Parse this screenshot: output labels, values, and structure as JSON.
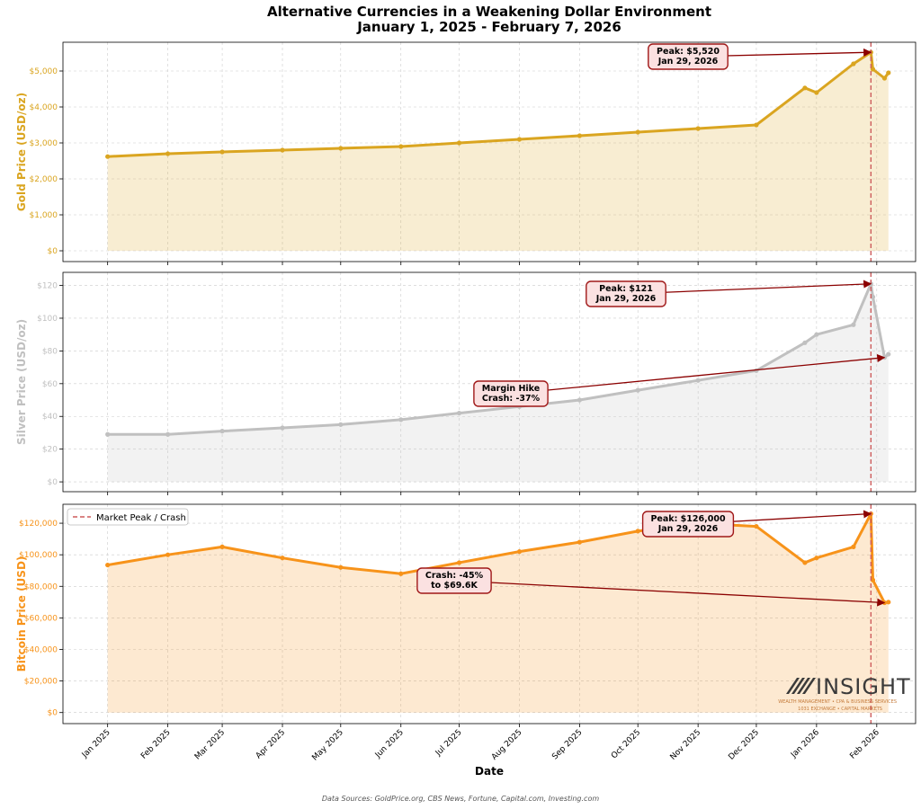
{
  "title_line1": "Alternative Currencies in a Weakening Dollar Environment",
  "title_line2": "January 1, 2025 - February 7, 2026",
  "x_axis_label": "Date",
  "x_ticks": [
    "Jan 2025",
    "Feb 2025",
    "Mar 2025",
    "Apr 2025",
    "May 2025",
    "Jun 2025",
    "Jul 2025",
    "Aug 2025",
    "Sep 2025",
    "Oct 2025",
    "Nov 2025",
    "Dec 2025",
    "Jan 2026",
    "Feb 2026"
  ],
  "source_note": "Data Sources: GoldPrice.org, CBS News, Fortune, Capital.com, Investing.com",
  "legend_label": "Market Peak / Crash",
  "peak_date": "2026-01-29",
  "logo": {
    "name": "INSIGHT",
    "line1": "WEALTH MANAGEMENT • CPA & BUSINESS SERVICES",
    "line2": "1031 EXCHANGE • CAPITAL MARKETS"
  },
  "colors": {
    "gold": "#DAA520",
    "silver": "#C0C0C0",
    "bitcoin": "#F7931A",
    "annotation": "#8B0000",
    "peak_line": "#CD5C5C"
  },
  "chart_data": [
    {
      "type": "area",
      "name": "gold",
      "ylabel": "Gold Price (USD/oz)",
      "ylim": [
        -300,
        5800
      ],
      "yticks": [
        0,
        1000,
        2000,
        3000,
        4000,
        5000
      ],
      "ytick_labels": [
        "$0",
        "$1,000",
        "$2,000",
        "$3,000",
        "$4,000",
        "$5,000"
      ],
      "x": [
        "2025-01-01",
        "2025-02-01",
        "2025-03-01",
        "2025-04-01",
        "2025-05-01",
        "2025-06-01",
        "2025-07-01",
        "2025-08-01",
        "2025-09-01",
        "2025-10-01",
        "2025-11-01",
        "2025-12-01",
        "2025-12-26",
        "2026-01-01",
        "2026-01-20",
        "2026-01-29",
        "2026-01-30",
        "2026-02-05",
        "2026-02-07"
      ],
      "values": [
        2620,
        2700,
        2750,
        2800,
        2850,
        2900,
        3000,
        3100,
        3200,
        3300,
        3400,
        3500,
        4530,
        4400,
        5200,
        5520,
        5050,
        4800,
        4950
      ],
      "annotations": [
        {
          "text_lines": [
            "Peak: $5,520",
            "Jan 29, 2026"
          ],
          "x": "2026-01-29",
          "y": 5520
        }
      ]
    },
    {
      "type": "area",
      "name": "silver",
      "ylabel": "Silver Price (USD/oz)",
      "ylim": [
        -6,
        128
      ],
      "yticks": [
        0,
        20,
        40,
        60,
        80,
        100,
        120
      ],
      "ytick_labels": [
        "$0",
        "$20",
        "$40",
        "$60",
        "$80",
        "$100",
        "$120"
      ],
      "x": [
        "2025-01-01",
        "2025-02-01",
        "2025-03-01",
        "2025-04-01",
        "2025-05-01",
        "2025-06-01",
        "2025-07-01",
        "2025-08-01",
        "2025-09-01",
        "2025-10-01",
        "2025-11-01",
        "2025-12-01",
        "2025-12-26",
        "2026-01-01",
        "2026-01-20",
        "2026-01-29",
        "2026-01-30",
        "2026-02-05",
        "2026-02-07"
      ],
      "values": [
        29,
        29,
        31,
        33,
        35,
        38,
        42,
        46,
        50,
        56,
        62,
        68,
        85,
        90,
        96,
        121,
        113,
        76,
        78
      ],
      "annotations": [
        {
          "text_lines": [
            "Peak: $121",
            "Jan 29, 2026"
          ],
          "x": "2026-01-29",
          "y": 121
        },
        {
          "text_lines": [
            "Margin Hike",
            "Crash: -37%"
          ],
          "x": "2026-02-05",
          "y": 76
        }
      ]
    },
    {
      "type": "area",
      "name": "bitcoin",
      "ylabel": "Bitcoin Price (USD)",
      "ylim": [
        -7000,
        132000
      ],
      "yticks": [
        0,
        20000,
        40000,
        60000,
        80000,
        100000,
        120000
      ],
      "ytick_labels": [
        "$0",
        "$20,000",
        "$40,000",
        "$60,000",
        "$80,000",
        "$100,000",
        "$120,000"
      ],
      "x": [
        "2025-01-01",
        "2025-02-01",
        "2025-03-01",
        "2025-04-01",
        "2025-05-01",
        "2025-06-01",
        "2025-07-01",
        "2025-08-01",
        "2025-09-01",
        "2025-10-01",
        "2025-11-01",
        "2025-12-01",
        "2025-12-26",
        "2026-01-01",
        "2026-01-20",
        "2026-01-29",
        "2026-01-30",
        "2026-02-05",
        "2026-02-07"
      ],
      "values": [
        93500,
        100000,
        105000,
        98000,
        92000,
        88000,
        95000,
        102000,
        108000,
        115000,
        120000,
        118000,
        95000,
        98000,
        105000,
        126000,
        84000,
        69600,
        70000
      ],
      "annotations": [
        {
          "text_lines": [
            "Peak: $126,000",
            "Jan 29, 2026"
          ],
          "x": "2026-01-29",
          "y": 126000
        },
        {
          "text_lines": [
            "Crash: -45%",
            "to $69.6K"
          ],
          "x": "2026-02-05",
          "y": 69600
        }
      ]
    }
  ]
}
